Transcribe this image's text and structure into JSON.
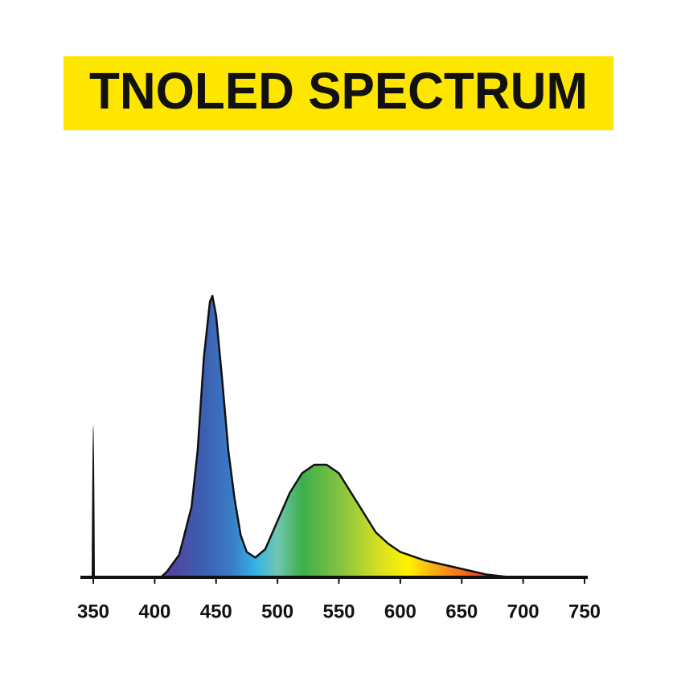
{
  "chart_data": {
    "type": "area",
    "title": "TNOLED SPECTRUM",
    "x": [
      405,
      410,
      420,
      430,
      435,
      440,
      445,
      447,
      450,
      455,
      460,
      465,
      470,
      475,
      482,
      490,
      500,
      510,
      520,
      530,
      535,
      540,
      550,
      560,
      570,
      580,
      590,
      600,
      610,
      620,
      630,
      640,
      650,
      660,
      670,
      680,
      690
    ],
    "values": [
      0,
      0.02,
      0.08,
      0.25,
      0.45,
      0.78,
      0.98,
      1.0,
      0.93,
      0.7,
      0.45,
      0.28,
      0.15,
      0.09,
      0.07,
      0.1,
      0.2,
      0.3,
      0.37,
      0.4,
      0.4,
      0.4,
      0.37,
      0.3,
      0.23,
      0.16,
      0.12,
      0.09,
      0.075,
      0.06,
      0.05,
      0.04,
      0.03,
      0.02,
      0.01,
      0.005,
      0
    ],
    "xlim": [
      350,
      750
    ],
    "xticks": [
      350,
      400,
      450,
      500,
      550,
      600,
      650,
      700,
      750
    ],
    "ylim": [
      0,
      1
    ]
  }
}
